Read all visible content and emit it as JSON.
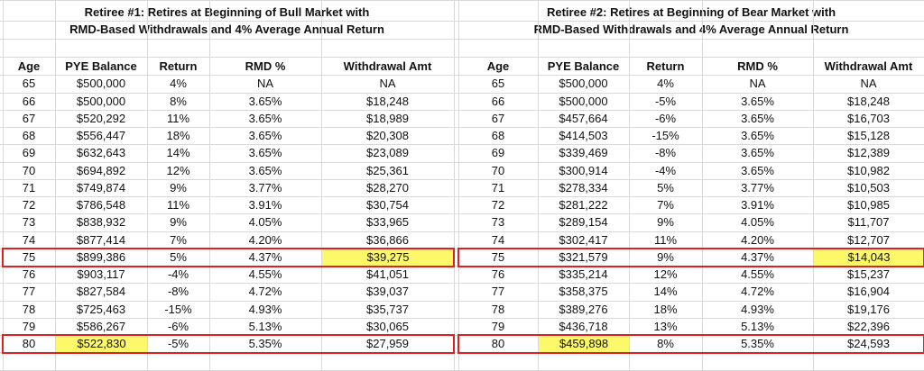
{
  "tables": [
    {
      "title_line1": "Retiree #1: Retires at Beginning of Bull Market with",
      "title_line2": "RMD-Based Withdrawals and 4% Average Annual Return",
      "headers": [
        "Age",
        "PYE Balance",
        "Return",
        "RMD %",
        "Withdrawal Amt"
      ],
      "rows": [
        [
          "65",
          "$500,000",
          "4%",
          "NA",
          "NA"
        ],
        [
          "66",
          "$500,000",
          "8%",
          "3.65%",
          "$18,248"
        ],
        [
          "67",
          "$520,292",
          "11%",
          "3.65%",
          "$18,989"
        ],
        [
          "68",
          "$556,447",
          "18%",
          "3.65%",
          "$20,308"
        ],
        [
          "69",
          "$632,643",
          "14%",
          "3.65%",
          "$23,089"
        ],
        [
          "70",
          "$694,892",
          "12%",
          "3.65%",
          "$25,361"
        ],
        [
          "71",
          "$749,874",
          "9%",
          "3.77%",
          "$28,270"
        ],
        [
          "72",
          "$786,548",
          "11%",
          "3.91%",
          "$30,754"
        ],
        [
          "73",
          "$838,932",
          "9%",
          "4.05%",
          "$33,965"
        ],
        [
          "74",
          "$877,414",
          "7%",
          "4.20%",
          "$36,866"
        ],
        [
          "75",
          "$899,386",
          "5%",
          "4.37%",
          "$39,275"
        ],
        [
          "76",
          "$903,117",
          "-4%",
          "4.55%",
          "$41,051"
        ],
        [
          "77",
          "$827,584",
          "-8%",
          "4.72%",
          "$39,037"
        ],
        [
          "78",
          "$725,463",
          "-15%",
          "4.93%",
          "$35,737"
        ],
        [
          "79",
          "$586,267",
          "-6%",
          "5.13%",
          "$30,065"
        ],
        [
          "80",
          "$522,830",
          "-5%",
          "5.35%",
          "$27,959"
        ]
      ],
      "highlight_cells": [
        [
          10,
          4
        ],
        [
          15,
          1
        ]
      ],
      "boxed_rows": [
        10,
        15
      ]
    },
    {
      "title_line1": "Retiree #2: Retires at Beginning of Bear Market with",
      "title_line2": "RMD-Based Withdrawals and 4% Average Annual Return",
      "headers": [
        "Age",
        "PYE Balance",
        "Return",
        "RMD %",
        "Withdrawal Amt"
      ],
      "rows": [
        [
          "65",
          "$500,000",
          "4%",
          "NA",
          "NA"
        ],
        [
          "66",
          "$500,000",
          "-5%",
          "3.65%",
          "$18,248"
        ],
        [
          "67",
          "$457,664",
          "-6%",
          "3.65%",
          "$16,703"
        ],
        [
          "68",
          "$414,503",
          "-15%",
          "3.65%",
          "$15,128"
        ],
        [
          "69",
          "$339,469",
          "-8%",
          "3.65%",
          "$12,389"
        ],
        [
          "70",
          "$300,914",
          "-4%",
          "3.65%",
          "$10,982"
        ],
        [
          "71",
          "$278,334",
          "5%",
          "3.77%",
          "$10,503"
        ],
        [
          "72",
          "$281,222",
          "7%",
          "3.91%",
          "$10,985"
        ],
        [
          "73",
          "$289,154",
          "9%",
          "4.05%",
          "$11,707"
        ],
        [
          "74",
          "$302,417",
          "11%",
          "4.20%",
          "$12,707"
        ],
        [
          "75",
          "$321,579",
          "9%",
          "4.37%",
          "$14,043"
        ],
        [
          "76",
          "$335,214",
          "12%",
          "4.55%",
          "$15,237"
        ],
        [
          "77",
          "$358,375",
          "14%",
          "4.72%",
          "$16,904"
        ],
        [
          "78",
          "$389,276",
          "18%",
          "4.93%",
          "$19,176"
        ],
        [
          "79",
          "$436,718",
          "13%",
          "5.13%",
          "$22,396"
        ],
        [
          "80",
          "$459,898",
          "8%",
          "5.35%",
          "$24,593"
        ]
      ],
      "highlight_cells": [
        [
          10,
          4
        ],
        [
          15,
          1
        ]
      ],
      "boxed_rows": [
        10,
        15
      ]
    }
  ],
  "colors": {
    "highlight": "#fdf86a",
    "box": "#e02020",
    "grid": "#d9d9d9"
  }
}
